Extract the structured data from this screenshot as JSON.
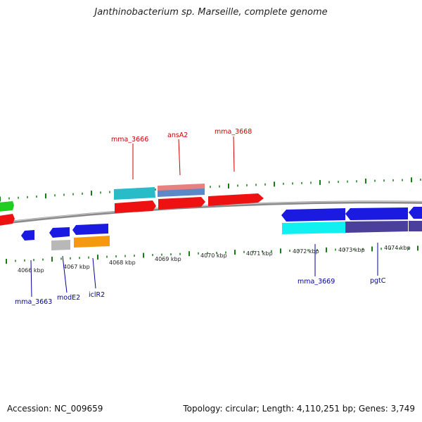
{
  "title": "Janthinobacterium sp. Marseille, complete genome",
  "footer": {
    "accession": "Accession: NC_009659",
    "summary": "Topology: circular; Length: 4,110,251 bp; Genes: 3,749"
  },
  "colors": {
    "backbone": "#808080",
    "forward_gene": "#ee1111",
    "reverse_gene": "#1a1ae0",
    "tick": "#1a7a1a",
    "label_forward": "#cc0000",
    "label_reverse": "#000099"
  },
  "kbp_labels": [
    "4066 kbp",
    "4067 kbp",
    "4068 kbp",
    "4069 kbp",
    "4070 kbp",
    "4071 kbp",
    "4072 kbp",
    "4073 kbp",
    "4074 kbp"
  ],
  "gene_labels_top": [
    "mma_3666",
    "ansA2",
    "mma_3668"
  ],
  "gene_labels_bottom": [
    "mma_3663",
    "modE2",
    "iclR2",
    "mma_3669",
    "pgtC"
  ]
}
